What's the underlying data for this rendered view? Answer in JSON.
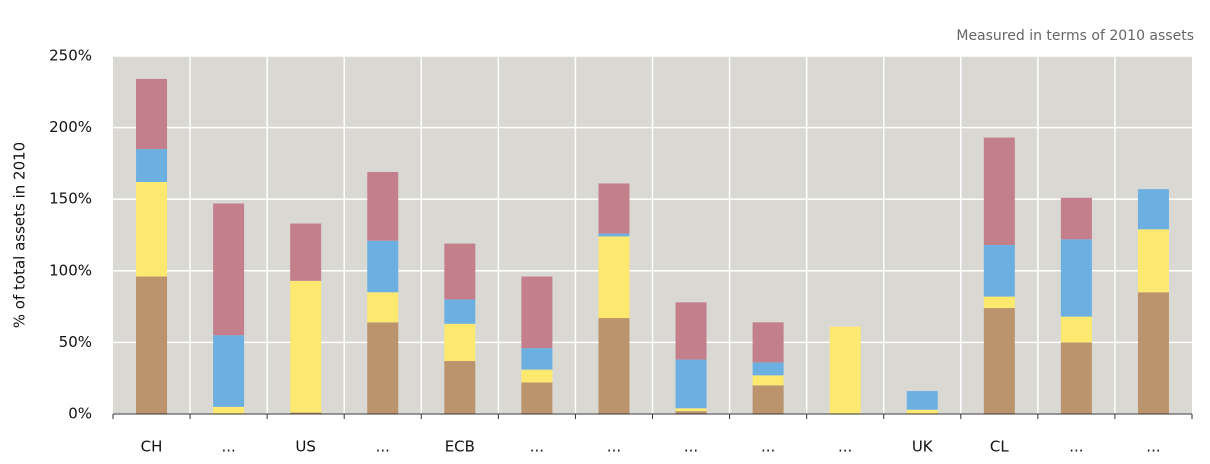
{
  "chart_data": {
    "type": "stacked_bar",
    "subtitle": "Measured in terms of 2010 assets",
    "y_label": "% of total assets in 2010",
    "categories": [
      "CH",
      "...",
      "US",
      "...",
      "ECB",
      "...",
      "...",
      "...",
      "...",
      "...",
      "UK",
      "CL",
      "...",
      "..."
    ],
    "series": [
      {
        "color": "#bb936d",
        "values": [
          96,
          0,
          1,
          64,
          37,
          22,
          67,
          2,
          20,
          0,
          0,
          74,
          50,
          85
        ]
      },
      {
        "color": "#fde96f",
        "values": [
          66,
          5,
          92,
          21,
          26,
          9,
          57,
          2,
          7,
          61,
          3,
          8,
          18,
          44
        ]
      },
      {
        "color": "#6cb0e2",
        "values": [
          23,
          50,
          0,
          36,
          17,
          15,
          2,
          34,
          9,
          0,
          13,
          36,
          54,
          28
        ]
      },
      {
        "color": "#c47f8d",
        "values": [
          49,
          92,
          40,
          48,
          39,
          50,
          35,
          40,
          28,
          0,
          0,
          75,
          29,
          0
        ]
      }
    ],
    "ylim": [
      0,
      250
    ],
    "yticks": [
      {
        "value": 0,
        "label": "0%"
      },
      {
        "value": 50,
        "label": "50%"
      },
      {
        "value": 100,
        "label": "100%"
      },
      {
        "value": 150,
        "label": "150%"
      },
      {
        "value": 200,
        "label": "200%"
      },
      {
        "value": 250,
        "label": "250%"
      }
    ],
    "grid": true
  }
}
